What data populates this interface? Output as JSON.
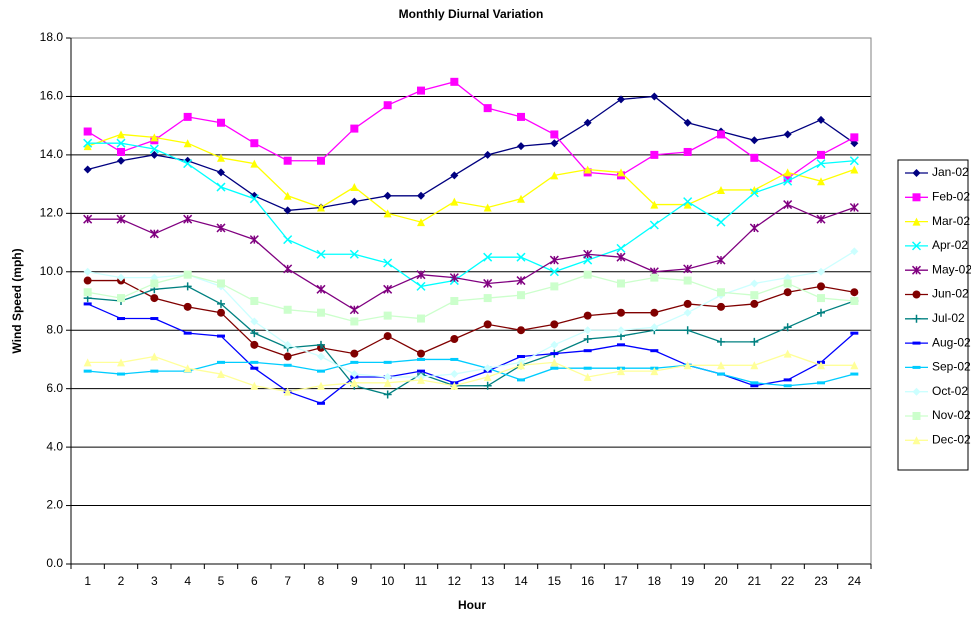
{
  "chart_data": {
    "type": "line",
    "title": "Monthly Diurnal Variation",
    "x_label": "Hour",
    "y_label": "Wind Speed (mph)",
    "categories": [
      "1",
      "2",
      "3",
      "4",
      "5",
      "6",
      "7",
      "8",
      "9",
      "10",
      "11",
      "12",
      "13",
      "14",
      "15",
      "16",
      "17",
      "18",
      "19",
      "20",
      "21",
      "22",
      "23",
      "24"
    ],
    "ylim": [
      0,
      18
    ],
    "yticks": [
      {
        "value": 0,
        "label": "0.0"
      },
      {
        "value": 2,
        "label": "2.0"
      },
      {
        "value": 4,
        "label": "4.0"
      },
      {
        "value": 6,
        "label": "6.0"
      },
      {
        "value": 8,
        "label": "8.0"
      },
      {
        "value": 10,
        "label": "10.0"
      },
      {
        "value": 12,
        "label": "12.0"
      },
      {
        "value": 14,
        "label": "14.0"
      },
      {
        "value": 16,
        "label": "16.0"
      },
      {
        "value": 18,
        "label": "18.0"
      }
    ],
    "grid": true,
    "legend": "right",
    "series": [
      {
        "name": "Jan-02",
        "color": "#000080",
        "marker": "diamond",
        "values": [
          13.5,
          13.8,
          14.0,
          13.8,
          13.4,
          12.6,
          12.1,
          12.2,
          12.4,
          12.6,
          12.6,
          13.3,
          14.0,
          14.3,
          14.4,
          15.1,
          15.9,
          16.0,
          15.1,
          14.8,
          14.5,
          14.7,
          15.2,
          14.4
        ]
      },
      {
        "name": "Feb-02",
        "color": "#FF00FF",
        "marker": "square",
        "values": [
          14.8,
          14.1,
          14.5,
          15.3,
          15.1,
          14.4,
          13.8,
          13.8,
          14.9,
          15.7,
          16.2,
          16.5,
          15.6,
          15.3,
          14.7,
          13.4,
          13.3,
          14.0,
          14.1,
          14.7,
          13.9,
          13.2,
          14.0,
          14.6
        ]
      },
      {
        "name": "Mar-02",
        "color": "#FFFF00",
        "marker": "triangle",
        "values": [
          14.3,
          14.7,
          14.6,
          14.4,
          13.9,
          13.7,
          12.6,
          12.2,
          12.9,
          12.0,
          11.7,
          12.4,
          12.2,
          12.5,
          13.3,
          13.5,
          13.4,
          12.3,
          12.3,
          12.8,
          12.8,
          13.4,
          13.1,
          13.5
        ]
      },
      {
        "name": "Apr-02",
        "color": "#00FFFF",
        "marker": "x",
        "values": [
          14.4,
          14.4,
          14.2,
          13.7,
          12.9,
          12.5,
          11.1,
          10.6,
          10.6,
          10.3,
          9.5,
          9.7,
          10.5,
          10.5,
          10.0,
          10.4,
          10.8,
          11.6,
          12.4,
          11.7,
          12.7,
          13.1,
          13.7,
          13.8
        ]
      },
      {
        "name": "May-02",
        "color": "#800080",
        "marker": "star",
        "values": [
          11.8,
          11.8,
          11.3,
          11.8,
          11.5,
          11.1,
          10.1,
          9.4,
          8.7,
          9.4,
          9.9,
          9.8,
          9.6,
          9.7,
          10.4,
          10.6,
          10.5,
          10.0,
          10.1,
          10.4,
          11.5,
          12.3,
          11.8,
          12.2
        ]
      },
      {
        "name": "Jun-02",
        "color": "#800000",
        "marker": "circle",
        "values": [
          9.7,
          9.7,
          9.1,
          8.8,
          8.6,
          7.5,
          7.1,
          7.4,
          7.2,
          7.8,
          7.2,
          7.7,
          8.2,
          8.0,
          8.2,
          8.5,
          8.6,
          8.6,
          8.9,
          8.8,
          8.9,
          9.3,
          9.5,
          9.3
        ]
      },
      {
        "name": "Jul-02",
        "color": "#008080",
        "marker": "plus",
        "values": [
          9.1,
          9.0,
          9.4,
          9.5,
          8.9,
          7.9,
          7.4,
          7.5,
          6.1,
          5.8,
          6.5,
          6.1,
          6.1,
          6.8,
          7.2,
          7.7,
          7.8,
          8.0,
          8.0,
          7.6,
          7.6,
          8.1,
          8.6,
          9.0
        ]
      },
      {
        "name": "Aug-02",
        "color": "#0000FF",
        "marker": "dash",
        "values": [
          8.9,
          8.4,
          8.4,
          7.9,
          7.8,
          6.7,
          5.9,
          5.5,
          6.4,
          6.4,
          6.6,
          6.2,
          6.6,
          7.1,
          7.2,
          7.3,
          7.5,
          7.3,
          6.8,
          6.5,
          6.1,
          6.3,
          6.9,
          7.9
        ]
      },
      {
        "name": "Sep-02",
        "color": "#00CCFF",
        "marker": "dash",
        "values": [
          6.6,
          6.5,
          6.6,
          6.6,
          6.9,
          6.9,
          6.8,
          6.6,
          6.9,
          6.9,
          7.0,
          7.0,
          6.7,
          6.3,
          6.7,
          6.7,
          6.7,
          6.7,
          6.8,
          6.5,
          6.2,
          6.1,
          6.2,
          6.5
        ]
      },
      {
        "name": "Oct-02",
        "color": "#CCFFFF",
        "marker": "diamond",
        "values": [
          10.0,
          9.8,
          9.8,
          9.9,
          9.5,
          8.3,
          7.5,
          7.1,
          6.5,
          6.4,
          6.4,
          6.5,
          6.7,
          6.9,
          7.5,
          8.0,
          8.0,
          8.1,
          8.6,
          9.2,
          9.6,
          9.8,
          10.0,
          10.7
        ]
      },
      {
        "name": "Nov-02",
        "color": "#CCFFCC",
        "marker": "square",
        "values": [
          9.3,
          9.1,
          9.6,
          9.9,
          9.6,
          9.0,
          8.7,
          8.6,
          8.3,
          8.5,
          8.4,
          9.0,
          9.1,
          9.2,
          9.5,
          9.9,
          9.6,
          9.8,
          9.7,
          9.3,
          9.2,
          9.6,
          9.1,
          9.0
        ]
      },
      {
        "name": "Dec-02",
        "color": "#FFFF99",
        "marker": "triangle",
        "values": [
          6.9,
          6.9,
          7.1,
          6.7,
          6.5,
          6.1,
          5.9,
          6.1,
          6.2,
          6.2,
          6.3,
          6.1,
          6.4,
          6.8,
          6.9,
          6.4,
          6.6,
          6.6,
          6.8,
          6.8,
          6.8,
          7.2,
          6.8,
          6.8
        ]
      }
    ]
  }
}
